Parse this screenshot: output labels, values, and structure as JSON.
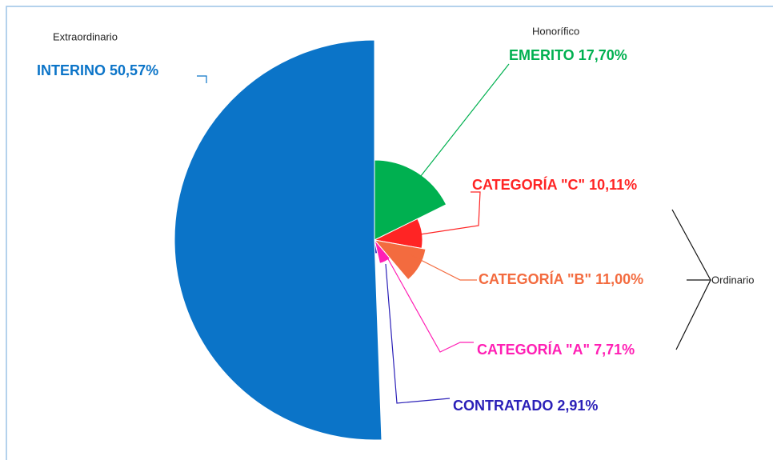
{
  "chart_data": {
    "type": "pie",
    "categories": [
      "EMERITO",
      "CATEGORÍA \"C\"",
      "CATEGORÍA \"B\"",
      "CATEGORÍA \"A\"",
      "CONTRATADO",
      "INTERINO"
    ],
    "values": [
      17.7,
      10.11,
      11.0,
      7.71,
      2.91,
      50.57
    ],
    "value_labels": [
      "17,70%",
      "10,11%",
      "11,00%",
      "7,71%",
      "2,91%",
      "50,57%"
    ],
    "colors": [
      "#00b050",
      "#ff2424",
      "#f36b3f",
      "#ff1fb4",
      "#2b20b8",
      "#0b74c8"
    ],
    "groups": [
      "Honorífico",
      "Ordinario",
      "Extraordinario"
    ]
  }
}
